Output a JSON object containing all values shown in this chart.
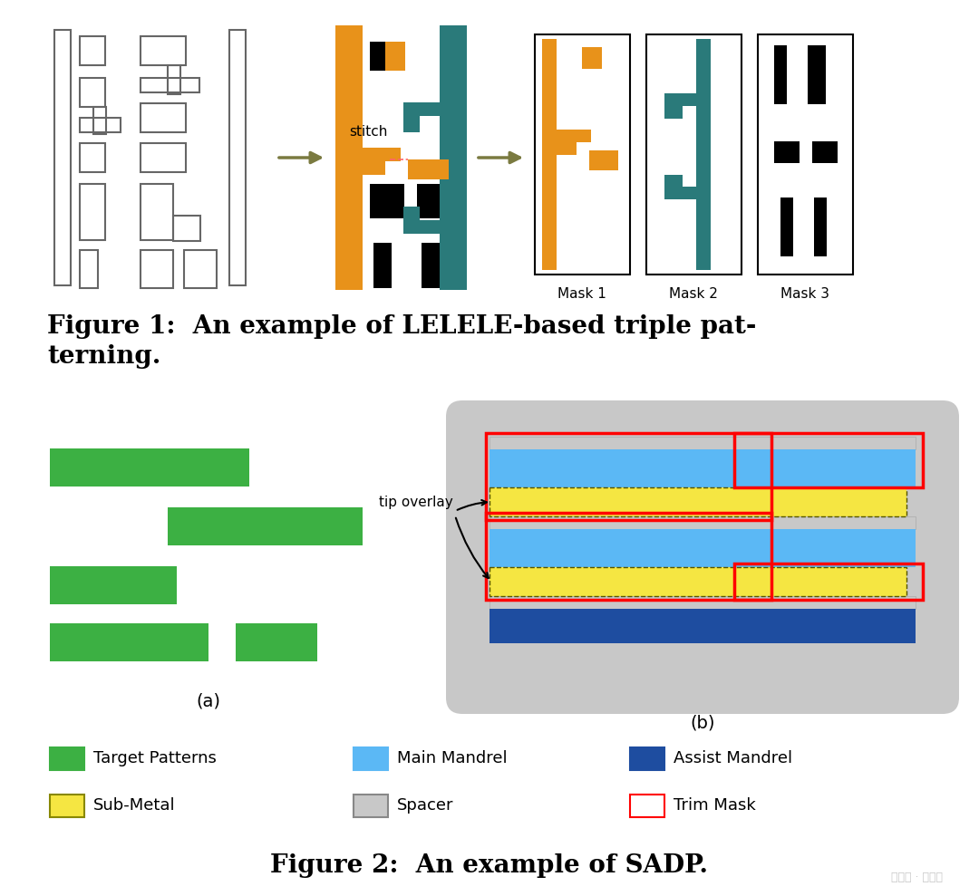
{
  "fig_width": 10.8,
  "fig_height": 9.89,
  "bg_color": "#ffffff",
  "orange_color": "#E8921A",
  "teal_color": "#2A7A7A",
  "black_color": "#000000",
  "gray_outline": "#666666",
  "green_color": "#3CB043",
  "blue_light": "#5BB8F5",
  "blue_dark": "#1E4DA0",
  "yellow_color": "#F5E642",
  "red_color": "#FF0000",
  "spacer_color": "#C8C8C8",
  "arrow_color": "#7A7A40",
  "figure1_caption": "Figure 1:  An example of LELELE-based triple pat-\nterning.",
  "figure2_caption": "Figure 2:  An example of SADP.",
  "label_a": "(a)",
  "label_b": "(b)",
  "mask1_label": "Mask 1",
  "mask2_label": "Mask 2",
  "mask3_label": "Mask 3",
  "stitch_label": "stitch",
  "tip_overlay_label": "tip overlay",
  "legend_items": [
    {
      "label": "Target Patterns",
      "color": "#3CB043",
      "edge": "#3CB043"
    },
    {
      "label": "Main Mandrel",
      "color": "#5BB8F5",
      "edge": "#5BB8F5"
    },
    {
      "label": "Assist Mandrel",
      "color": "#1E4DA0",
      "edge": "#1E4DA0"
    },
    {
      "label": "Sub-Metal",
      "color": "#F5E642",
      "edge": "#888888"
    },
    {
      "label": "Spacer",
      "color": "#C8C8C8",
      "edge": "#888888"
    },
    {
      "label": "Trim Mask",
      "color": "#ffffff",
      "edge": "#FF0000"
    }
  ]
}
